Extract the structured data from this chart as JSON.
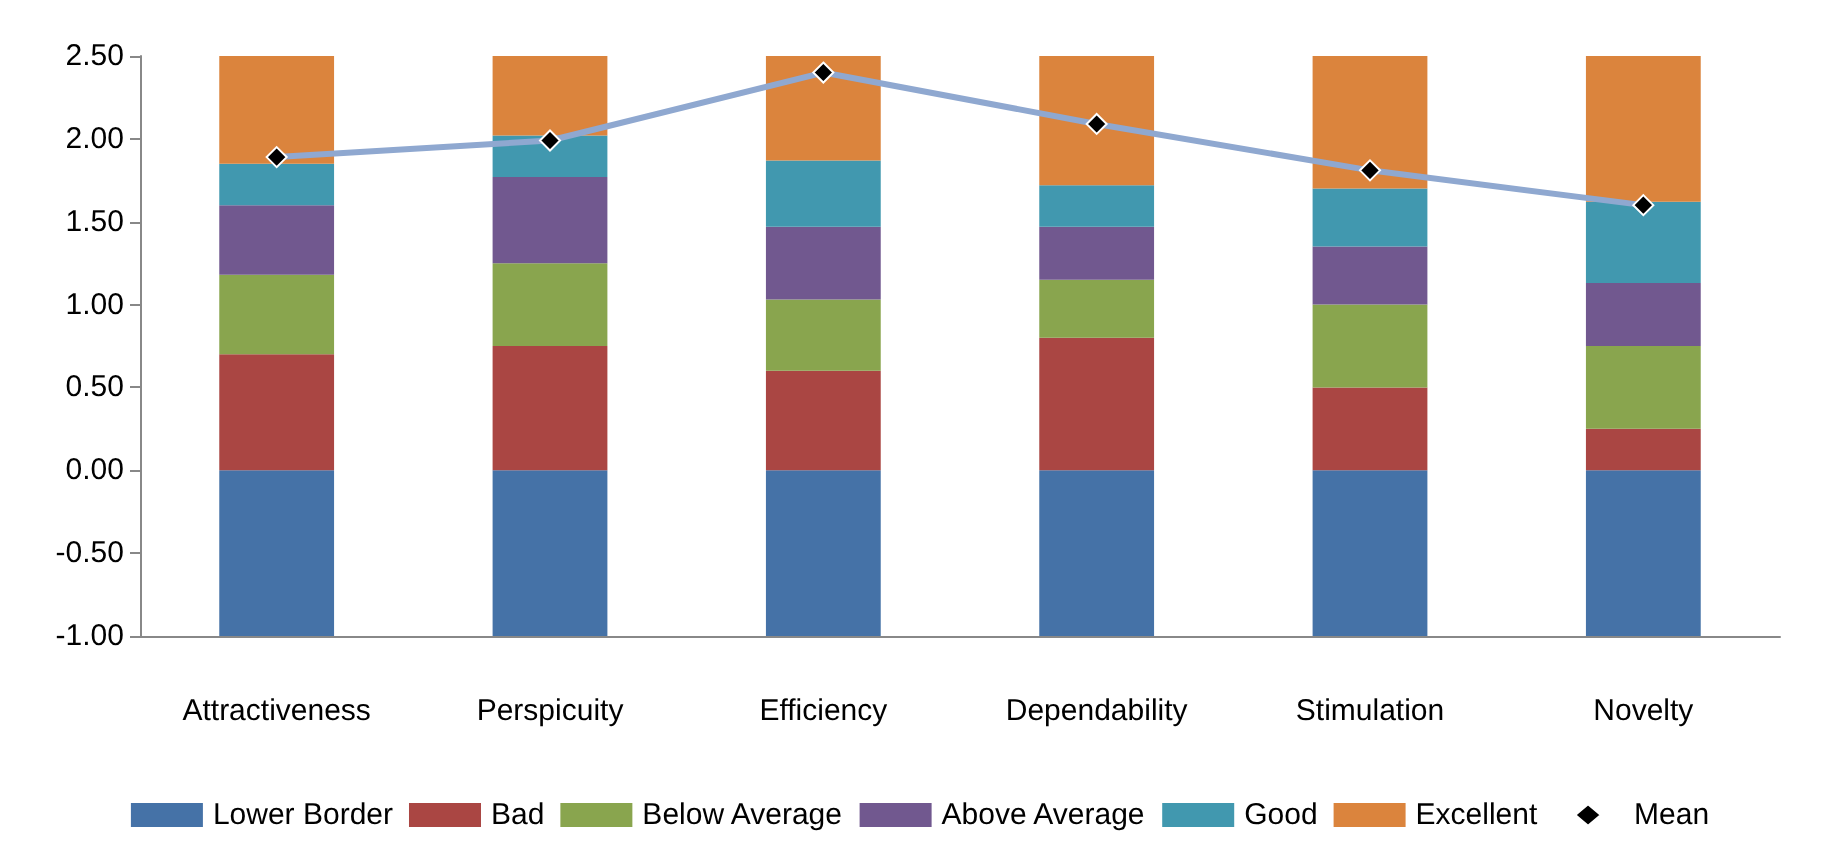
{
  "chart_data": {
    "type": "bar",
    "stacked": true,
    "categories": [
      "Attractiveness",
      "Perspicuity",
      "Efficiency",
      "Dependability",
      "Stimulation",
      "Novelty"
    ],
    "ylim": [
      -1,
      2.5
    ],
    "yticks": [
      {
        "value": -1,
        "label": "-1.00"
      },
      {
        "value": -0.5,
        "label": "-0.50"
      },
      {
        "value": 0,
        "label": "0.00"
      },
      {
        "value": 0.5,
        "label": "0.50"
      },
      {
        "value": 1,
        "label": "1.00"
      },
      {
        "value": 1.5,
        "label": "1.50"
      },
      {
        "value": 2,
        "label": "2.00"
      },
      {
        "value": 2.5,
        "label": "2.50"
      }
    ],
    "grid": false,
    "legend": "bottom",
    "series": [
      {
        "name": "Lower Border",
        "color": "#4572a7",
        "values": [
          -1,
          -1,
          -1,
          -1,
          -1,
          -1
        ]
      },
      {
        "name": "Bad",
        "color": "#aa4643",
        "values": [
          0.7,
          0.75,
          0.6,
          0.8,
          0.5,
          0.25
        ]
      },
      {
        "name": "Below Average",
        "color": "#89a54e",
        "values": [
          0.48,
          0.5,
          0.43,
          0.35,
          0.5,
          0.5
        ]
      },
      {
        "name": "Above Average",
        "color": "#71588f",
        "values": [
          0.42,
          0.52,
          0.44,
          0.32,
          0.35,
          0.38
        ]
      },
      {
        "name": "Good",
        "color": "#4198af",
        "values": [
          0.25,
          0.25,
          0.4,
          0.25,
          0.35,
          0.49
        ]
      },
      {
        "name": "Excellent",
        "color": "#db843d",
        "values": [
          0.65,
          0.48,
          0.63,
          0.78,
          0.8,
          0.88
        ]
      },
      {
        "name": "Mean",
        "type": "line",
        "color": "#8fa8d0",
        "marker": "diamond",
        "values": [
          1.89,
          1.99,
          2.4,
          2.09,
          1.81,
          1.6
        ]
      }
    ]
  }
}
